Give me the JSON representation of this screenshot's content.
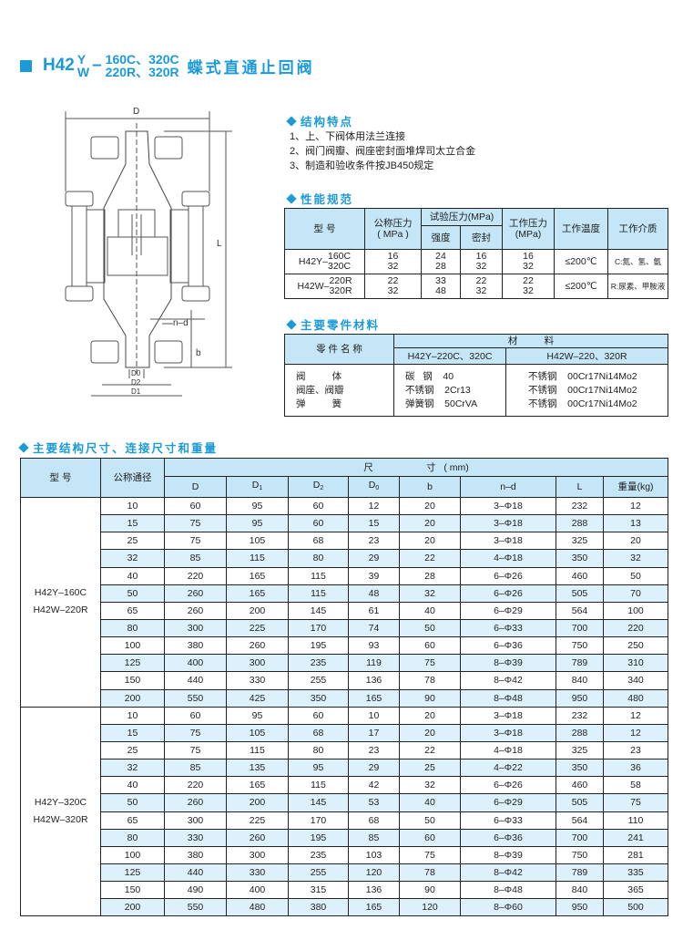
{
  "title": {
    "prefix": "H42",
    "sup": "Y",
    "sub": "W",
    "dash": "–",
    "top": "160C、320C",
    "bottom": "220R、320R",
    "name": "蝶式直通止回阀"
  },
  "drawing": {
    "labels": {
      "D": "D",
      "L": "L",
      "nd": "n–d",
      "b": "b",
      "D0": "D0",
      "D2": "D2",
      "D1": "D1"
    }
  },
  "features": {
    "heading": "结构特点",
    "items": [
      "1、上、下阀体用法兰连接",
      "2、阀门阀瓣、阀座密封面堆焊司太立合金",
      "3、制造和验收条件按JB450规定"
    ]
  },
  "performance": {
    "heading": "性能规范",
    "headers": {
      "model": "型  号",
      "nominal": "公称压力",
      "nominal_unit": "( MPa )",
      "test": "试验压力(MPa)",
      "strength": "强度",
      "seal": "密封",
      "working": "工作压力",
      "working_unit": "(MPa)",
      "temp": "工作温度",
      "medium": "工作介质"
    },
    "rows": [
      {
        "model": "H42Y–",
        "m1": "160C",
        "m2": "320C",
        "nominal": [
          "16",
          "32"
        ],
        "strength": [
          "24",
          "28"
        ],
        "seal": [
          "16",
          "32"
        ],
        "working": [
          "16",
          "32"
        ],
        "temp": "≤200℃",
        "medium": "C:氮、氢、氨"
      },
      {
        "model": "H42W–",
        "m1": "220R",
        "m2": "320R",
        "nominal": [
          "22",
          "32"
        ],
        "strength": [
          "33",
          "48"
        ],
        "seal": [
          "22",
          "32"
        ],
        "working": [
          "22",
          "32"
        ],
        "temp": "≤200℃",
        "medium": "R:尿素、甲胺液"
      }
    ]
  },
  "materials": {
    "heading": "主要零件材料",
    "headers": {
      "part": "零 件 名 称",
      "material": "材          料",
      "col1": "H42Y–220C、320C",
      "col2": "H42W–220、320R"
    },
    "rows": [
      {
        "part": "阀          体",
        "m1": "碳   钢    40",
        "m2": "不锈钢    00Cr17Ni14Mo2"
      },
      {
        "part": "阀座、阀瓣",
        "m1": "不锈钢    2Cr13",
        "m2": "不锈钢    00Cr17Ni14Mo2"
      },
      {
        "part": "弹          簧",
        "m1": "弹簧钢    50CrVA",
        "m2": "不锈钢    00Cr17Ni14Mo2"
      }
    ]
  },
  "dimensions": {
    "heading": "主要结构尺寸、连接尺寸和重量",
    "headers": {
      "model": "型  号",
      "dn": "公称通径",
      "size": "尺                    寸   ( mm)",
      "D": "D",
      "D1": "D",
      "D1s": "1",
      "D2": "D",
      "D2s": "2",
      "D0": "D",
      "D0s": "0",
      "b": "b",
      "nd": "n–d",
      "L": "L",
      "weight": "重量(kg)"
    },
    "groups": [
      {
        "model1": "H42Y–160C",
        "model2": "H42W–220R",
        "rows": [
          [
            "10",
            "60",
            "95",
            "60",
            "12",
            "20",
            "3–Φ18",
            "232",
            "12"
          ],
          [
            "15",
            "75",
            "95",
            "60",
            "15",
            "20",
            "3–Φ18",
            "288",
            "13"
          ],
          [
            "25",
            "75",
            "105",
            "68",
            "23",
            "20",
            "3–Φ18",
            "325",
            "20"
          ],
          [
            "32",
            "85",
            "115",
            "80",
            "29",
            "22",
            "4–Φ18",
            "350",
            "32"
          ],
          [
            "40",
            "220",
            "165",
            "115",
            "39",
            "28",
            "6–Φ26",
            "460",
            "50"
          ],
          [
            "50",
            "260",
            "165",
            "115",
            "48",
            "32",
            "6–Φ26",
            "505",
            "70"
          ],
          [
            "65",
            "260",
            "200",
            "145",
            "61",
            "40",
            "6–Φ29",
            "564",
            "100"
          ],
          [
            "80",
            "300",
            "225",
            "170",
            "74",
            "50",
            "6–Φ33",
            "700",
            "220"
          ],
          [
            "100",
            "380",
            "260",
            "195",
            "93",
            "60",
            "6–Φ36",
            "750",
            "250"
          ],
          [
            "125",
            "400",
            "300",
            "235",
            "119",
            "75",
            "8–Φ39",
            "789",
            "310"
          ],
          [
            "150",
            "440",
            "330",
            "255",
            "136",
            "78",
            "8–Φ42",
            "840",
            "340"
          ],
          [
            "200",
            "550",
            "425",
            "350",
            "165",
            "90",
            "8–Φ48",
            "950",
            "480"
          ]
        ]
      },
      {
        "model1": "H42Y–320C",
        "model2": "H42W–320R",
        "rows": [
          [
            "10",
            "60",
            "95",
            "60",
            "10",
            "20",
            "3–Φ18",
            "232",
            "12"
          ],
          [
            "15",
            "75",
            "105",
            "68",
            "17",
            "20",
            "3–Φ18",
            "288",
            "12"
          ],
          [
            "25",
            "75",
            "115",
            "80",
            "23",
            "22",
            "4–Φ18",
            "325",
            "23"
          ],
          [
            "32",
            "85",
            "135",
            "95",
            "29",
            "25",
            "4–Φ22",
            "350",
            "36"
          ],
          [
            "40",
            "220",
            "165",
            "115",
            "42",
            "32",
            "6–Φ26",
            "460",
            "58"
          ],
          [
            "50",
            "260",
            "200",
            "145",
            "53",
            "40",
            "6–Φ29",
            "505",
            "75"
          ],
          [
            "65",
            "300",
            "225",
            "170",
            "68",
            "50",
            "6–Φ33",
            "564",
            "110"
          ],
          [
            "80",
            "330",
            "260",
            "195",
            "85",
            "60",
            "6–Φ36",
            "700",
            "241"
          ],
          [
            "100",
            "380",
            "300",
            "235",
            "103",
            "75",
            "8–Φ39",
            "750",
            "281"
          ],
          [
            "125",
            "440",
            "330",
            "255",
            "120",
            "78",
            "8–Φ42",
            "789",
            "335"
          ],
          [
            "150",
            "490",
            "400",
            "315",
            "136",
            "90",
            "8–Φ48",
            "840",
            "365"
          ],
          [
            "200",
            "550",
            "480",
            "380",
            "165",
            "120",
            "8–Φ60",
            "950",
            "500"
          ]
        ]
      }
    ]
  },
  "colors": {
    "accent": "#1b9ad8",
    "header_bg": "#c4e6f7",
    "stripe": "#dcf1fb"
  }
}
